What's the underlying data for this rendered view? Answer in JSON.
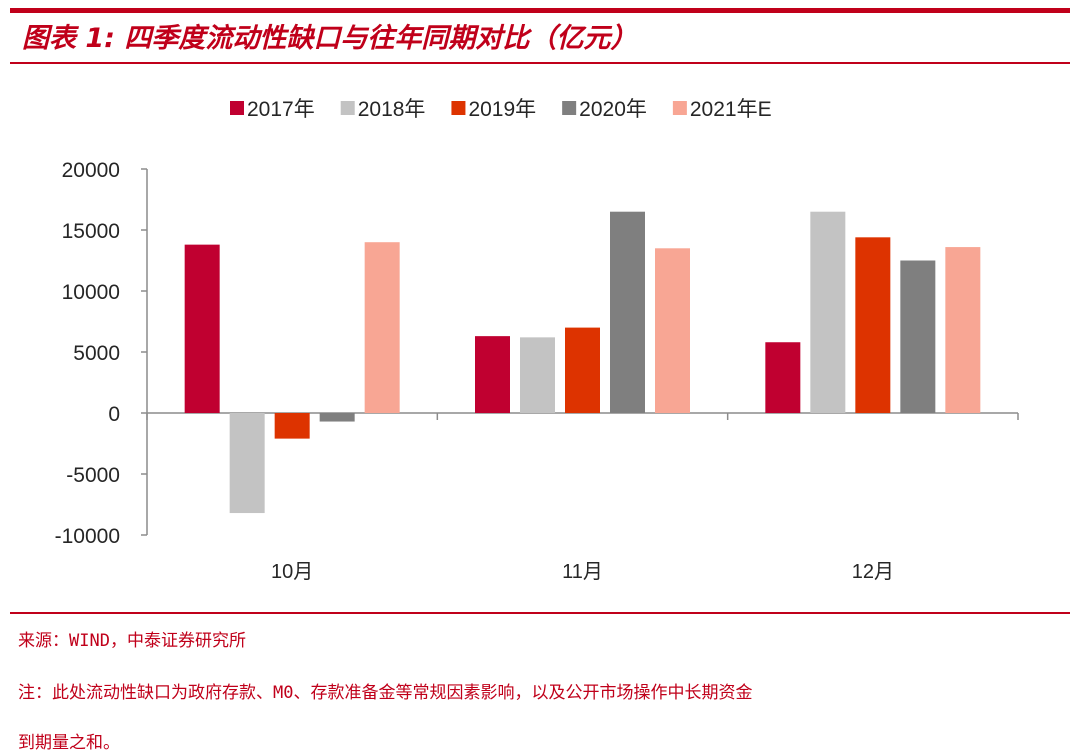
{
  "title": "图表 1:  四季度流动性缺口与往年同期对比（亿元）",
  "source": "来源：WIND，中泰证券研究所",
  "note_line1": "注：此处流动性缺口为政府存款、M0、存款准备金等常规因素影响，以及公开市场操作中长期资金",
  "note_line2": "到期量之和。",
  "colors": {
    "accent": "#c0001a"
  },
  "chart_data": {
    "type": "bar",
    "title": "",
    "xlabel": "",
    "ylabel": "",
    "ylim": [
      -10000,
      20000
    ],
    "yticks": [
      20000,
      15000,
      10000,
      5000,
      0,
      -5000,
      -10000
    ],
    "grid": false,
    "legend_position": "top",
    "categories": [
      "10月",
      "11月",
      "12月"
    ],
    "series": [
      {
        "name": "2017年",
        "color": "#c00030",
        "values": [
          13800,
          6300,
          5800
        ]
      },
      {
        "name": "2018年",
        "color": "#c3c3c3",
        "values": [
          -8200,
          6200,
          16500
        ]
      },
      {
        "name": "2019年",
        "color": "#dd3300",
        "values": [
          -2100,
          7000,
          14400
        ]
      },
      {
        "name": "2020年",
        "color": "#7f7f7f",
        "values": [
          -700,
          16500,
          12500
        ]
      },
      {
        "name": "2021年E",
        "color": "#f8a694",
        "values": [
          14000,
          13500,
          13600
        ]
      }
    ]
  }
}
